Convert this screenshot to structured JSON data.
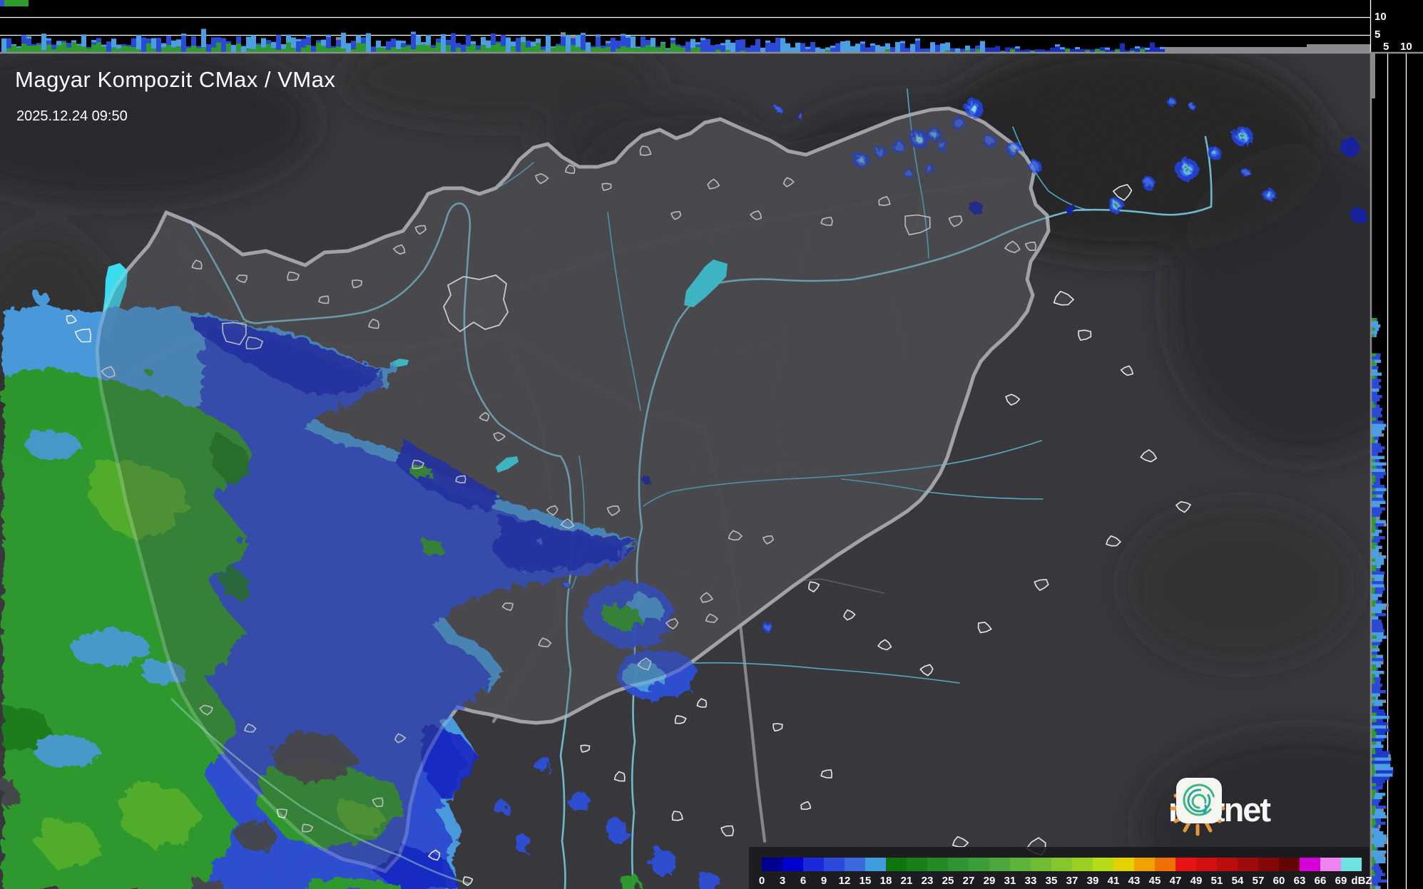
{
  "header": {
    "title": "Magyar Kompozit CMax / VMax",
    "timestamp": "2025.12.24 09:50"
  },
  "axes": {
    "top_panel_ticks": [
      "10",
      "5"
    ],
    "right_panel_ticks": [
      "5",
      "10"
    ]
  },
  "legend": {
    "unit": "dBZ",
    "values": [
      "0",
      "3",
      "6",
      "9",
      "12",
      "15",
      "18",
      "21",
      "23",
      "25",
      "27",
      "29",
      "31",
      "33",
      "35",
      "37",
      "39",
      "41",
      "43",
      "45",
      "47",
      "49",
      "51",
      "54",
      "57",
      "60",
      "63",
      "66",
      "69"
    ],
    "colors": [
      "#000090",
      "#0000CE",
      "#1A2ADA",
      "#2C49DE",
      "#3B68DE",
      "#419CDE",
      "#0E750E",
      "#197F19",
      "#248A24",
      "#309430",
      "#3C9E38",
      "#4CA83C",
      "#5DB23A",
      "#71BC35",
      "#86C62D",
      "#9BD023",
      "#B5DC14",
      "#E2D200",
      "#EFA200",
      "#ED7000",
      "#E61414",
      "#D31010",
      "#BB0D0D",
      "#9E0B0B",
      "#840808",
      "#620505",
      "#D800D8",
      "#EE85EE",
      "#70E2E2"
    ]
  },
  "branding": {
    "logo_text": "metnet"
  },
  "palette": {
    "rain_light_blue": "#4B9EE2",
    "rain_blue": "#2E4FD6",
    "rain_navy": "#1827C6",
    "rain_green": "#2F9B2F",
    "rain_bright_green": "#55B42A",
    "rain_dark_green": "#1C7C1C",
    "water": "#3ADDF0",
    "river": "#54B8D8",
    "big_river": "#7AC6DC",
    "border_gray": "#97979D",
    "motorway_gray": "#A2A2A6",
    "county_gray": "#67676C",
    "nodata_gray": "#8A8A8E",
    "panel_black": "#000000"
  }
}
